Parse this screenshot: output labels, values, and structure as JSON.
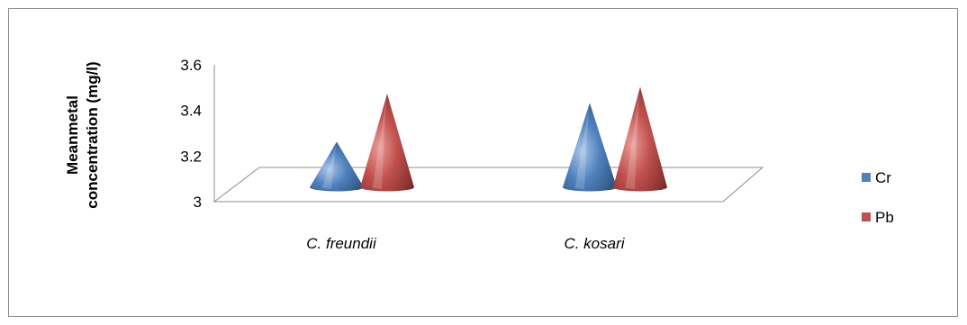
{
  "chart_data": {
    "type": "bar",
    "bar_shape": "cone-3d",
    "title": "",
    "xlabel": "",
    "ylabel": "Meanmetal concentration (mg/l)",
    "ylabel_lines": [
      "Meanmetal",
      "concentration (mg/l)"
    ],
    "categories": [
      "C. freundii",
      "C. kosari"
    ],
    "series": [
      {
        "name": "Cr",
        "color": "#4f81bd",
        "values": [
          3.2,
          3.37
        ]
      },
      {
        "name": "Pb",
        "color": "#c0504d",
        "values": [
          3.41,
          3.44
        ]
      }
    ],
    "ylim": [
      3,
      3.6
    ],
    "yticks": [
      "3",
      "3.2",
      "3.4",
      "3.6"
    ],
    "legend_position": "right",
    "grid": false
  }
}
